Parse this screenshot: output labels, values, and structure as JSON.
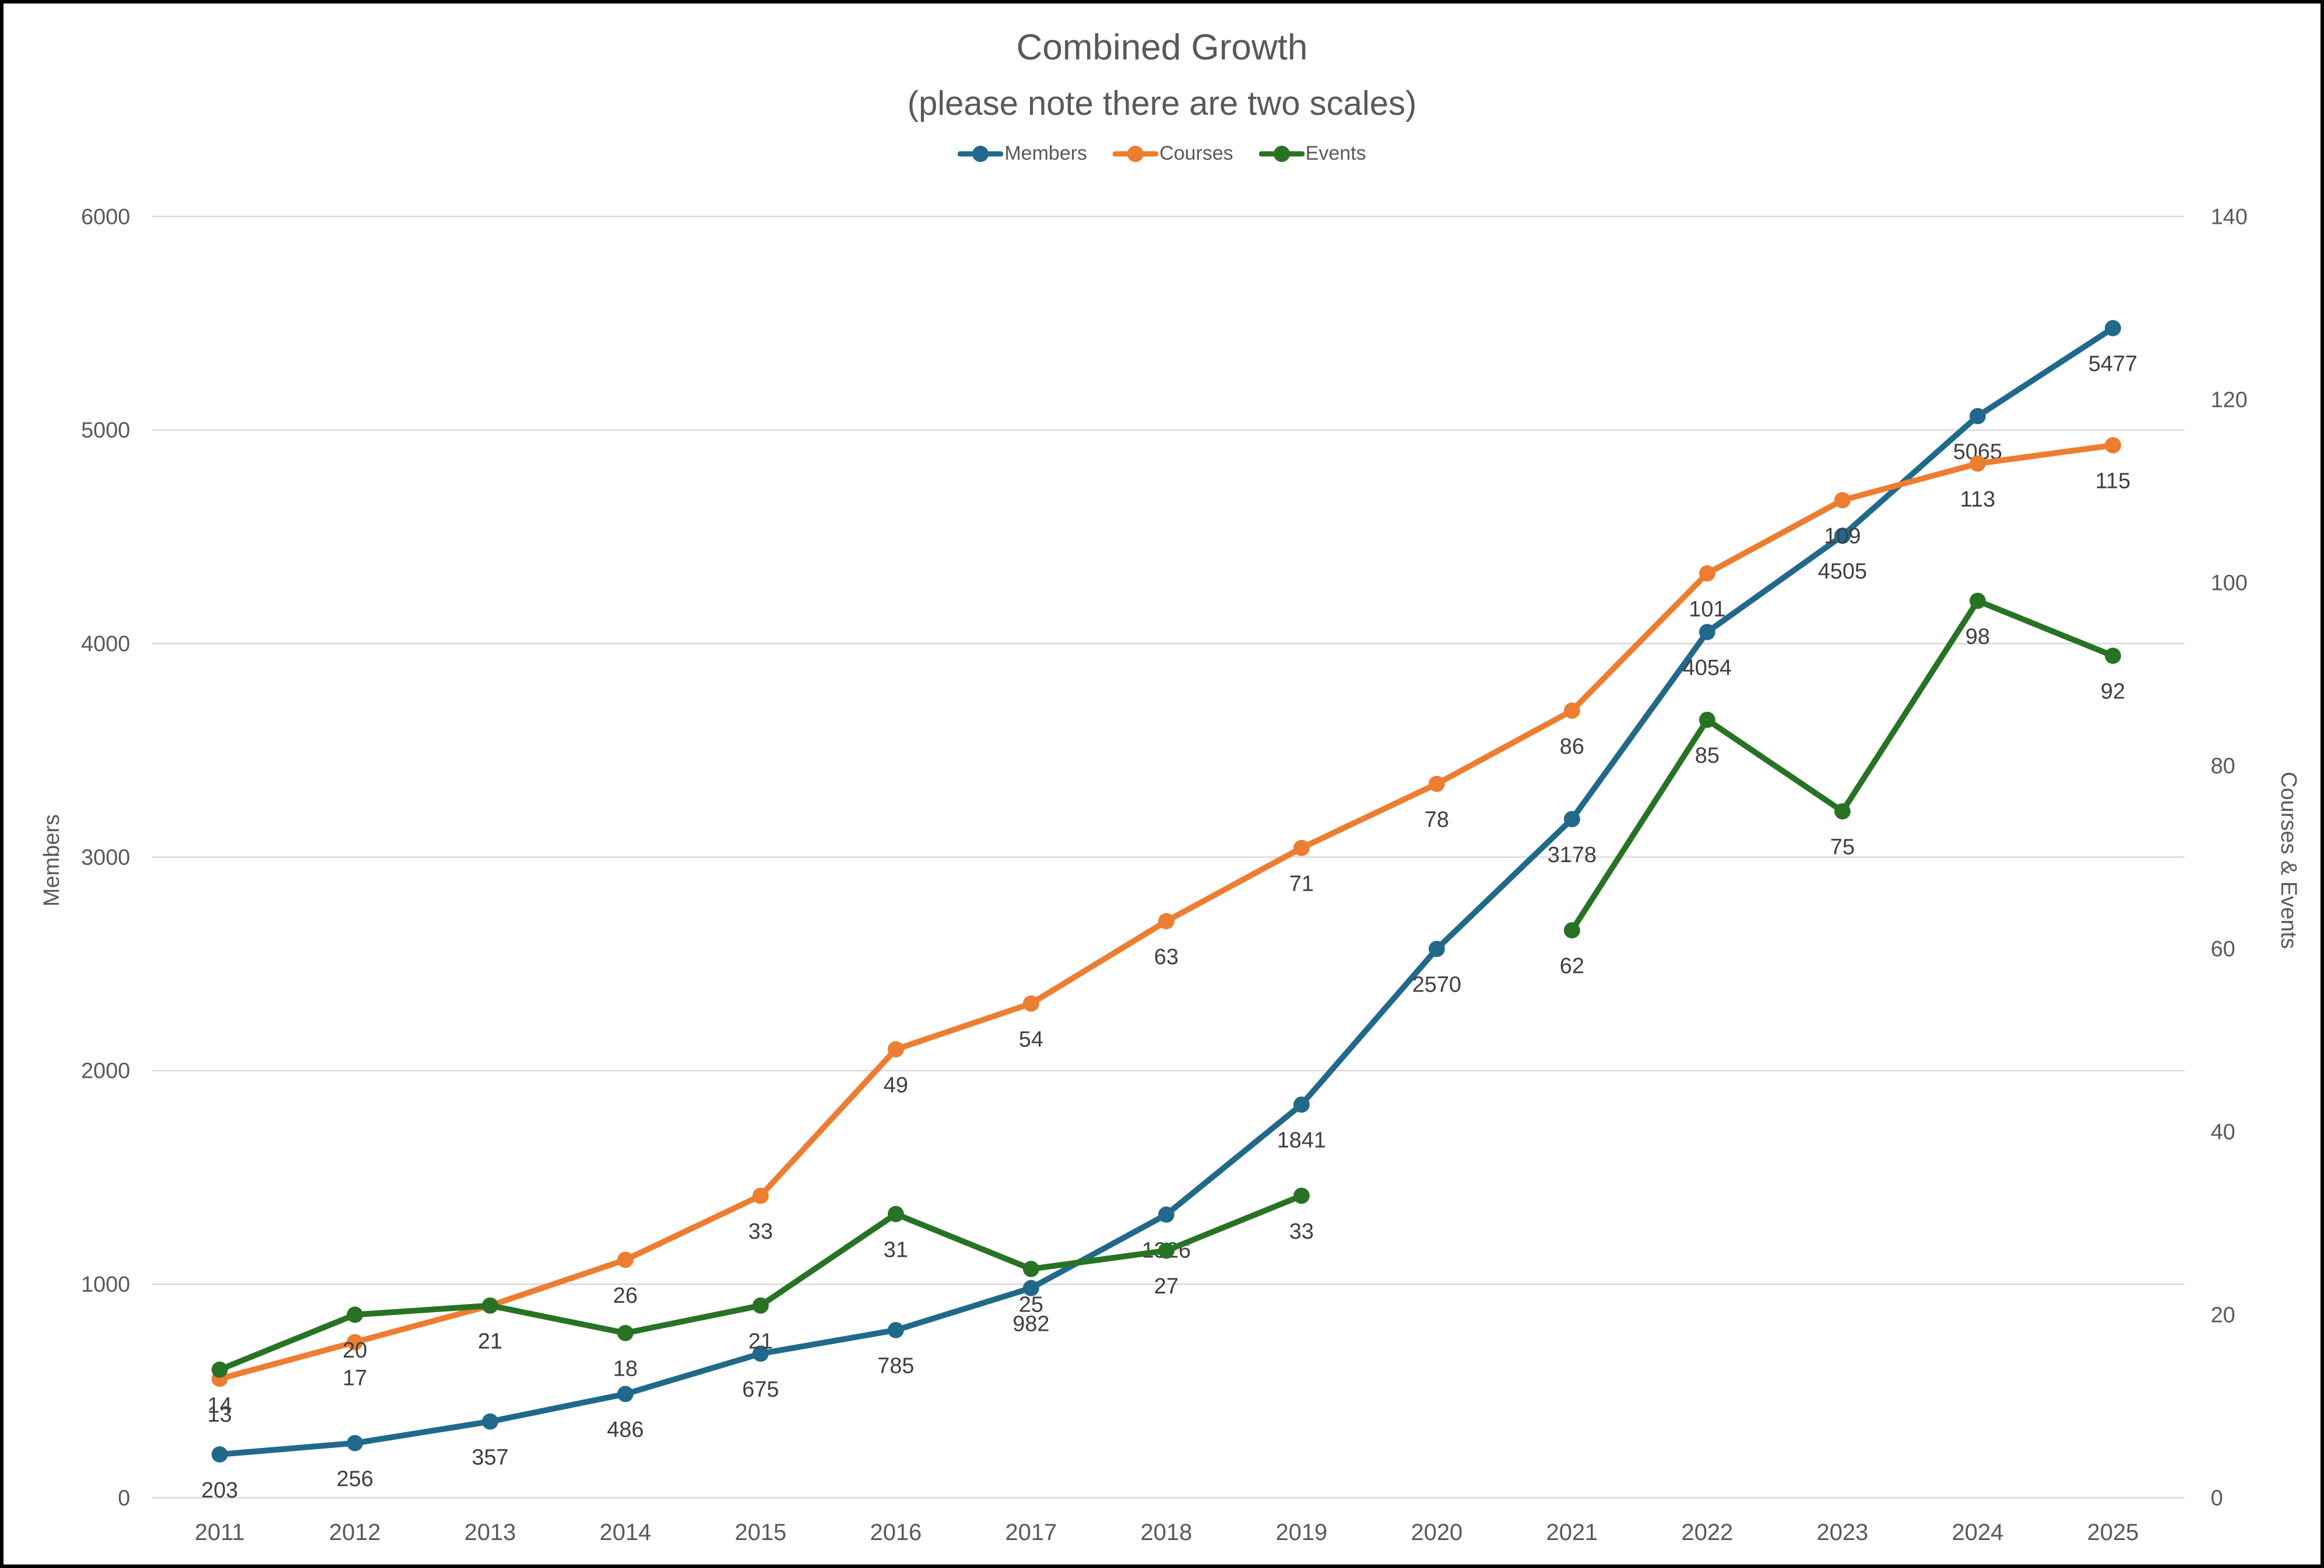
{
  "chart_data": {
    "type": "line",
    "title": "Combined Growth",
    "subtitle": "(please note there are two scales)",
    "legend_position": "top",
    "grid": true,
    "categories": [
      "2011",
      "2012",
      "2013",
      "2014",
      "2015",
      "2016",
      "2017",
      "2018",
      "2019",
      "2020",
      "2021",
      "2022",
      "2023",
      "2024",
      "2025"
    ],
    "series": [
      {
        "name": "Members",
        "axis": "left",
        "color": "#21698B",
        "values": [
          203,
          256,
          357,
          486,
          675,
          785,
          982,
          1326,
          1841,
          2570,
          3178,
          4054,
          4505,
          5065,
          5477
        ]
      },
      {
        "name": "Courses",
        "axis": "right",
        "color": "#ED7D31",
        "values": [
          13,
          17,
          21,
          26,
          33,
          49,
          54,
          63,
          71,
          78,
          86,
          101,
          109,
          113,
          115
        ]
      },
      {
        "name": "Events",
        "axis": "right",
        "color": "#277323",
        "values": [
          14,
          20,
          21,
          18,
          21,
          31,
          25,
          27,
          33,
          null,
          62,
          85,
          75,
          98,
          92
        ]
      }
    ],
    "axes": {
      "left": {
        "label": "Members",
        "min": 0,
        "max": 6000,
        "step": 1000,
        "ticks": [
          0,
          1000,
          2000,
          3000,
          4000,
          5000,
          6000
        ]
      },
      "right": {
        "label": "Courses & Events",
        "min": 0,
        "max": 140,
        "step": 20,
        "ticks": [
          0,
          20,
          40,
          60,
          80,
          100,
          120,
          140
        ]
      }
    },
    "style": {
      "text_color": "#595959",
      "data_label_color": "#3F3F3F",
      "grid_color": "#D9D9D9",
      "background": "#FFFFFF",
      "border_color": "#000000"
    }
  }
}
